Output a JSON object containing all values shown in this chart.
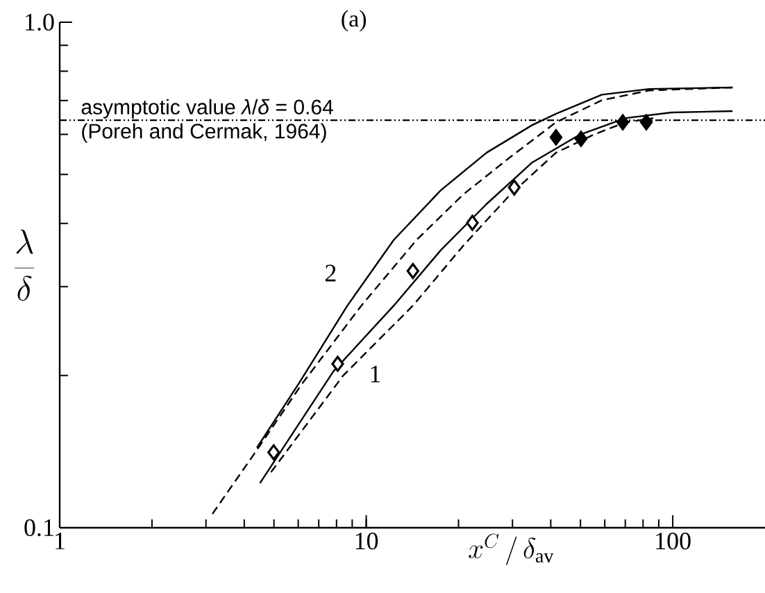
{
  "chart_data": {
    "type": "line",
    "log": "xy",
    "xlim": [
      1,
      200
    ],
    "ylim": [
      0.1,
      1
    ],
    "xticks": [
      1,
      10,
      100
    ],
    "yticks": [
      {
        "value": 0.1,
        "label": "0.1"
      },
      {
        "value": 1,
        "label": "1.0"
      }
    ],
    "xlabel": "x^{C} \\,/\\, \\delta_{\\mathrm{av}}",
    "ylabel": "\\frac{\\lambda}{\\delta}",
    "annotations": [
      "(a)",
      "(Poreh and Cermak, 1964)"
    ],
    "ref_lines": [
      {
        "axis": "y",
        "value": 0.64,
        "label": "asymptotic value *λ*/*δ* = 0.64",
        "line_style": "dashdotdotted",
        "color": "#000000"
      }
    ],
    "series": [
      {
        "name": "2",
        "line_style": "solid",
        "color": "#000000",
        "x": [
          4.4,
          6.03,
          8.68,
          12.3,
          17.5,
          24.7,
          34.8,
          41.6,
          58.7,
          83.7,
          156.7
        ],
        "values": [
          0.144,
          0.193,
          0.275,
          0.371,
          0.465,
          0.552,
          0.626,
          0.659,
          0.719,
          0.738,
          0.743
        ]
      },
      {
        "line_style": "dashed",
        "color": "#000000",
        "x": [
          3.15,
          4.31,
          6.15,
          9.64,
          14.6,
          20.7,
          29.5,
          41.6,
          58.7,
          83.7,
          156.7
        ],
        "values": [
          0.1065,
          0.14,
          0.192,
          0.275,
          0.371,
          0.456,
          0.541,
          0.634,
          0.701,
          0.733,
          0.743
        ]
      },
      {
        "name": "1",
        "line_style": "solid",
        "color": "#000000",
        "x": [
          4.5,
          7.82,
          12.3,
          17.5,
          24.7,
          34.8,
          49.7,
          70.1,
          98.9,
          156.7
        ],
        "values": [
          0.1225,
          0.204,
          0.275,
          0.354,
          0.437,
          0.528,
          0.599,
          0.646,
          0.663,
          0.667
        ]
      },
      {
        "line_style": "dashed",
        "color": "#000000",
        "x": [
          4.89,
          8.41,
          14.2,
          20.7,
          29.5,
          41.6,
          55.1,
          70.1,
          86.4
        ],
        "values": [
          0.1288,
          0.2,
          0.275,
          0.361,
          0.456,
          0.552,
          0.599,
          0.634,
          0.646
        ]
      },
      {
        "type": "scatter",
        "marker": "diamond",
        "color": "#ffffff",
        "x": [
          4.99,
          8.07,
          14.2,
          22.2,
          30.4
        ],
        "values": [
          0.141,
          0.211,
          0.322,
          0.401,
          0.471
        ]
      },
      {
        "type": "scatter",
        "marker": "diamond",
        "color": "#000000",
        "x": [
          41.6,
          50.2,
          68.7,
          82.0
        ],
        "values": [
          0.592,
          0.588,
          0.634,
          0.634
        ]
      }
    ]
  }
}
